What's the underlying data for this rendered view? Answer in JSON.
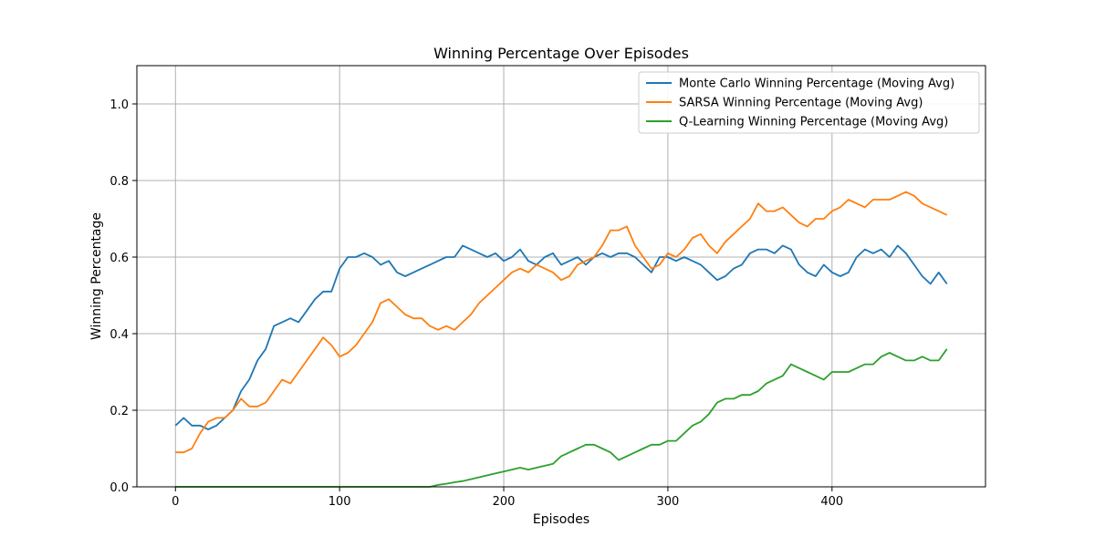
{
  "chart_data": {
    "type": "line",
    "title": "Winning Percentage Over Episodes",
    "xlabel": "Episodes",
    "ylabel": "Winning Percentage",
    "xlim": [
      -23.5,
      493.5
    ],
    "ylim": [
      0,
      1.1
    ],
    "xticks": [
      0,
      100,
      200,
      300,
      400
    ],
    "yticks": [
      0.0,
      0.2,
      0.4,
      0.6,
      0.8,
      1.0
    ],
    "grid": true,
    "legend_position": "top-right",
    "series": [
      {
        "name": "Monte Carlo Winning Percentage (Moving Avg)",
        "color": "#1f77b4",
        "x": [
          0,
          5,
          10,
          15,
          20,
          25,
          30,
          35,
          40,
          45,
          50,
          55,
          60,
          65,
          70,
          75,
          80,
          85,
          90,
          95,
          100,
          105,
          110,
          115,
          120,
          125,
          130,
          135,
          140,
          145,
          150,
          155,
          160,
          165,
          170,
          175,
          180,
          185,
          190,
          195,
          200,
          205,
          210,
          215,
          220,
          225,
          230,
          235,
          240,
          245,
          250,
          255,
          260,
          265,
          270,
          275,
          280,
          285,
          290,
          295,
          300,
          305,
          310,
          315,
          320,
          325,
          330,
          335,
          340,
          345,
          350,
          355,
          360,
          365,
          370,
          375,
          380,
          385,
          390,
          395,
          400,
          405,
          410,
          415,
          420,
          425,
          430,
          435,
          440,
          445,
          450,
          455,
          460,
          465,
          470
        ],
        "y": [
          0.16,
          0.18,
          0.16,
          0.16,
          0.15,
          0.16,
          0.18,
          0.2,
          0.25,
          0.28,
          0.33,
          0.36,
          0.42,
          0.43,
          0.44,
          0.43,
          0.46,
          0.49,
          0.51,
          0.51,
          0.57,
          0.6,
          0.6,
          0.61,
          0.6,
          0.58,
          0.59,
          0.56,
          0.55,
          0.56,
          0.57,
          0.58,
          0.59,
          0.6,
          0.6,
          0.63,
          0.62,
          0.61,
          0.6,
          0.61,
          0.59,
          0.6,
          0.62,
          0.59,
          0.58,
          0.6,
          0.61,
          0.58,
          0.59,
          0.6,
          0.58,
          0.6,
          0.61,
          0.6,
          0.61,
          0.61,
          0.6,
          0.58,
          0.56,
          0.6,
          0.6,
          0.59,
          0.6,
          0.59,
          0.58,
          0.56,
          0.54,
          0.55,
          0.57,
          0.58,
          0.61,
          0.62,
          0.62,
          0.61,
          0.63,
          0.62,
          0.58,
          0.56,
          0.55,
          0.58,
          0.56,
          0.55,
          0.56,
          0.6,
          0.62,
          0.61,
          0.62,
          0.6,
          0.63,
          0.61,
          0.58,
          0.55,
          0.53,
          0.56,
          0.53
        ]
      },
      {
        "name": "SARSA Winning Percentage (Moving Avg)",
        "color": "#ff7f0e",
        "x": [
          0,
          5,
          10,
          15,
          20,
          25,
          30,
          35,
          40,
          45,
          50,
          55,
          60,
          65,
          70,
          75,
          80,
          85,
          90,
          95,
          100,
          105,
          110,
          115,
          120,
          125,
          130,
          135,
          140,
          145,
          150,
          155,
          160,
          165,
          170,
          175,
          180,
          185,
          190,
          195,
          200,
          205,
          210,
          215,
          220,
          225,
          230,
          235,
          240,
          245,
          250,
          255,
          260,
          265,
          270,
          275,
          280,
          285,
          290,
          295,
          300,
          305,
          310,
          315,
          320,
          325,
          330,
          335,
          340,
          345,
          350,
          355,
          360,
          365,
          370,
          375,
          380,
          385,
          390,
          395,
          400,
          405,
          410,
          415,
          420,
          425,
          430,
          435,
          440,
          445,
          450,
          455,
          460,
          465,
          470
        ],
        "y": [
          0.09,
          0.09,
          0.1,
          0.14,
          0.17,
          0.18,
          0.18,
          0.2,
          0.23,
          0.21,
          0.21,
          0.22,
          0.25,
          0.28,
          0.27,
          0.3,
          0.33,
          0.36,
          0.39,
          0.37,
          0.34,
          0.35,
          0.37,
          0.4,
          0.43,
          0.48,
          0.49,
          0.47,
          0.45,
          0.44,
          0.44,
          0.42,
          0.41,
          0.42,
          0.41,
          0.43,
          0.45,
          0.48,
          0.5,
          0.52,
          0.54,
          0.56,
          0.57,
          0.56,
          0.58,
          0.57,
          0.56,
          0.54,
          0.55,
          0.58,
          0.59,
          0.6,
          0.63,
          0.67,
          0.67,
          0.68,
          0.63,
          0.6,
          0.57,
          0.58,
          0.61,
          0.6,
          0.62,
          0.65,
          0.66,
          0.63,
          0.61,
          0.64,
          0.66,
          0.68,
          0.7,
          0.74,
          0.72,
          0.72,
          0.73,
          0.71,
          0.69,
          0.68,
          0.7,
          0.7,
          0.72,
          0.73,
          0.75,
          0.74,
          0.73,
          0.75,
          0.75,
          0.75,
          0.76,
          0.77,
          0.76,
          0.74,
          0.73,
          0.72,
          0.71
        ]
      },
      {
        "name": "Q-Learning Winning Percentage (Moving Avg)",
        "color": "#2ca02c",
        "x": [
          0,
          155,
          160,
          165,
          170,
          175,
          180,
          185,
          190,
          195,
          200,
          205,
          210,
          215,
          220,
          225,
          230,
          235,
          240,
          245,
          250,
          255,
          260,
          265,
          270,
          275,
          280,
          285,
          290,
          295,
          300,
          305,
          310,
          315,
          320,
          325,
          330,
          335,
          340,
          345,
          350,
          355,
          360,
          365,
          370,
          375,
          380,
          385,
          390,
          395,
          400,
          405,
          410,
          415,
          420,
          425,
          430,
          435,
          440,
          445,
          450,
          455,
          460,
          465,
          470
        ],
        "y": [
          0.0,
          0.0,
          0.005,
          0.008,
          0.012,
          0.015,
          0.02,
          0.025,
          0.03,
          0.035,
          0.04,
          0.045,
          0.05,
          0.045,
          0.05,
          0.055,
          0.06,
          0.08,
          0.09,
          0.1,
          0.11,
          0.11,
          0.1,
          0.09,
          0.07,
          0.08,
          0.09,
          0.1,
          0.11,
          0.11,
          0.12,
          0.12,
          0.14,
          0.16,
          0.17,
          0.19,
          0.22,
          0.23,
          0.23,
          0.24,
          0.24,
          0.25,
          0.27,
          0.28,
          0.29,
          0.32,
          0.31,
          0.3,
          0.29,
          0.28,
          0.3,
          0.3,
          0.3,
          0.31,
          0.32,
          0.32,
          0.34,
          0.35,
          0.34,
          0.33,
          0.33,
          0.34,
          0.33,
          0.33,
          0.36
        ]
      }
    ]
  }
}
